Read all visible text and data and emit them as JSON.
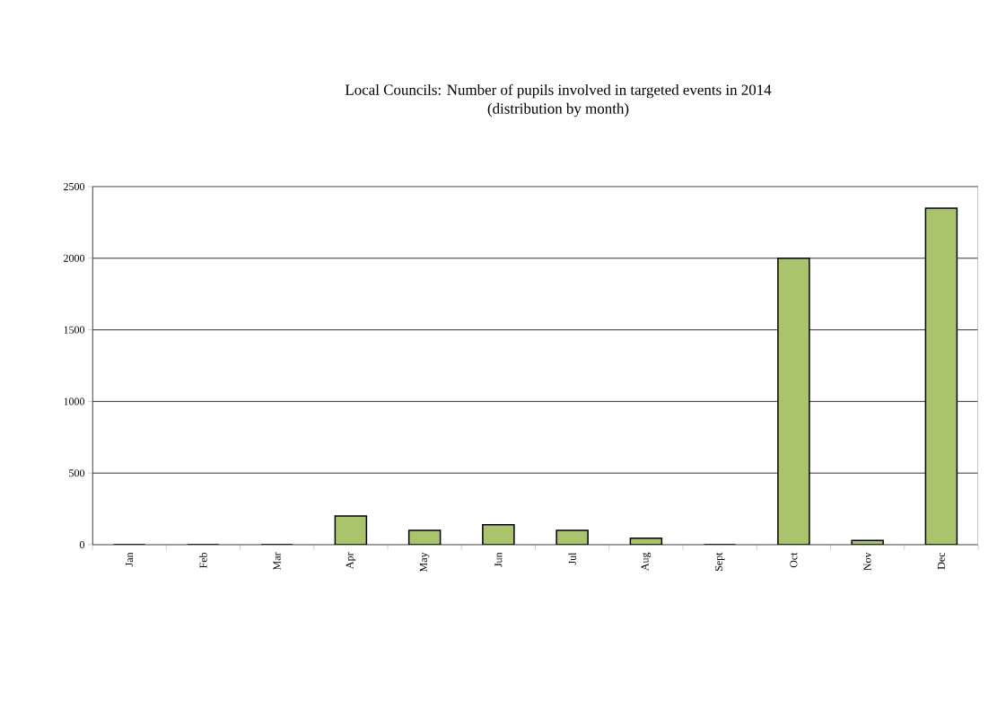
{
  "chart_data": {
    "type": "bar",
    "title": "Local Councils: Number of pupils involved in targeted events in 2014",
    "subtitle": "(distribution by month)",
    "categories": [
      "Jan",
      "Feb",
      "Mar",
      "Apr",
      "May",
      "Jun",
      "Jul",
      "Aug",
      "Sept",
      "Oct",
      "Nov",
      "Dec"
    ],
    "values": [
      0,
      0,
      0,
      200,
      100,
      140,
      100,
      45,
      0,
      2000,
      30,
      2350
    ],
    "color": "#a9c46c",
    "ylim": [
      0,
      2500
    ],
    "yticks": [
      0,
      500,
      1000,
      1500,
      2000,
      2500
    ],
    "grid": "y"
  }
}
